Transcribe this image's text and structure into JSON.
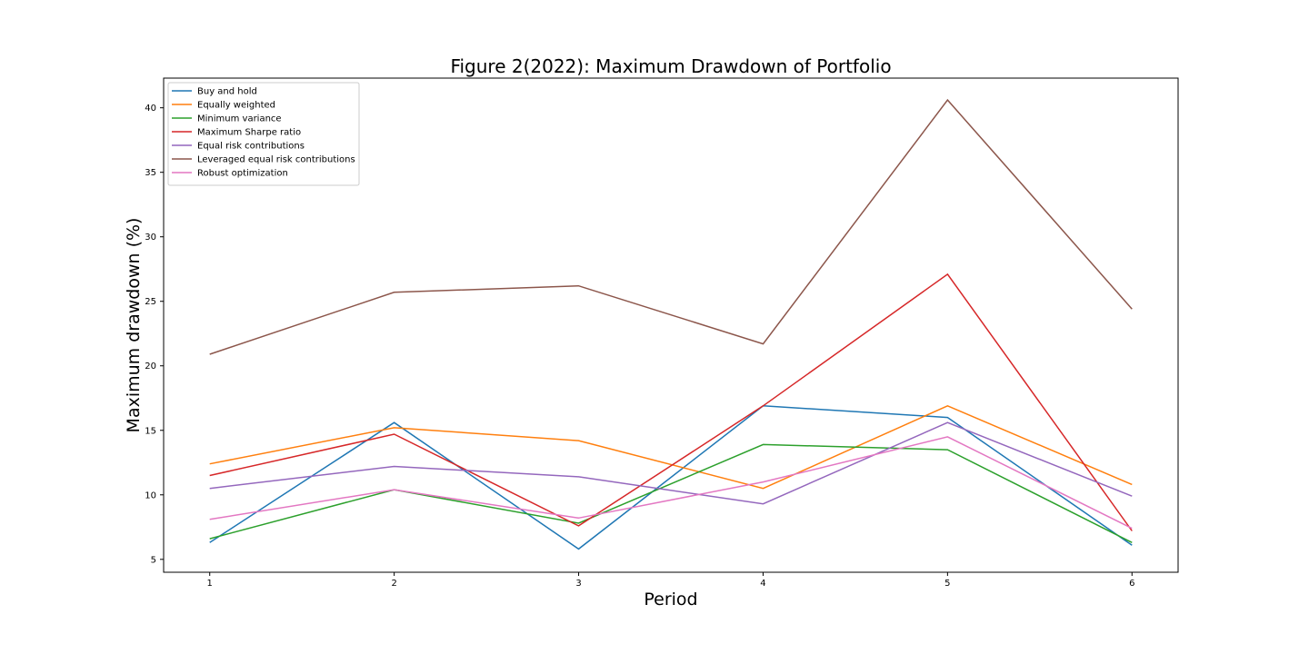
{
  "chart_data": {
    "type": "line",
    "title": "Figure 2(2022): Maximum Drawdown of Portfolio",
    "xlabel": "Period",
    "ylabel": "Maximum drawdown (%)",
    "x": [
      1,
      2,
      3,
      4,
      5,
      6
    ],
    "xlim": [
      0.75,
      6.25
    ],
    "ylim": [
      4.0,
      42.3
    ],
    "yticks": [
      5,
      10,
      15,
      20,
      25,
      30,
      35,
      40
    ],
    "grid": false,
    "legend_position": "upper-left",
    "series": [
      {
        "name": "Buy and hold",
        "color": "#1f77b4",
        "values": [
          6.3,
          15.6,
          5.8,
          16.9,
          16.0,
          6.1
        ]
      },
      {
        "name": "Equally weighted",
        "color": "#ff7f0e",
        "values": [
          12.4,
          15.2,
          14.2,
          10.5,
          16.9,
          10.8
        ]
      },
      {
        "name": "Minimum variance",
        "color": "#2ca02c",
        "values": [
          6.6,
          10.4,
          7.8,
          13.9,
          13.5,
          6.3
        ]
      },
      {
        "name": "Maximum Sharpe ratio",
        "color": "#d62728",
        "values": [
          11.5,
          14.7,
          7.6,
          16.9,
          27.1,
          7.2
        ]
      },
      {
        "name": "Equal risk contributions",
        "color": "#9467bd",
        "values": [
          10.5,
          12.2,
          11.4,
          9.3,
          15.6,
          9.9
        ]
      },
      {
        "name": "Leveraged equal risk contributions",
        "color": "#8c564b",
        "values": [
          20.9,
          25.7,
          26.2,
          21.7,
          40.6,
          24.4
        ]
      },
      {
        "name": "Robust optimization",
        "color": "#e377c2",
        "values": [
          8.1,
          10.4,
          8.2,
          11.0,
          14.5,
          7.4
        ]
      }
    ]
  }
}
